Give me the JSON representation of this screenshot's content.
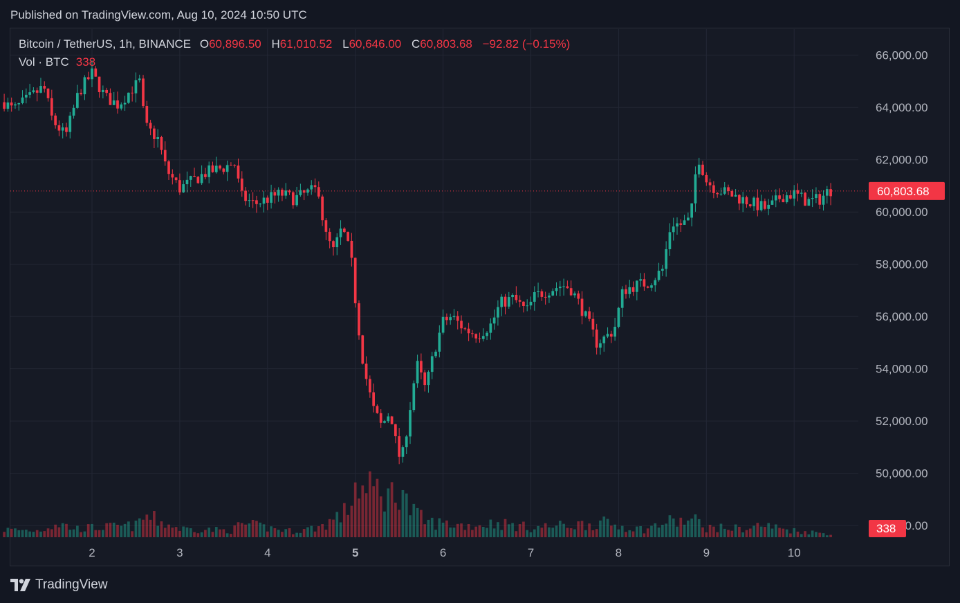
{
  "header": {
    "published": "Published on TradingView.com, Aug 10, 2024 10:50 UTC"
  },
  "legend": {
    "symbol": "Bitcoin / TetherUS, 1h, BINANCE",
    "o_label": "O",
    "o_value": "60,896.50",
    "h_label": "H",
    "h_value": "61,010.52",
    "l_label": "L",
    "l_value": "60,646.00",
    "c_label": "C",
    "c_value": "60,803.68",
    "change": "−92.82 (−0.15%)"
  },
  "volume_legend": {
    "label": "Vol · BTC",
    "value": "338"
  },
  "brand": {
    "name": "TradingView",
    "logo_icon": "tradingview-logo-icon"
  },
  "colors": {
    "up": "#22ab94",
    "down": "#f23645",
    "background": "#161a25",
    "grid": "#232735"
  },
  "chart_data": {
    "type": "candlestick",
    "ylim": [
      47500,
      67000
    ],
    "y_ticks": [
      "66,000.00",
      "64,000.00",
      "62,000.00",
      "60,000.00",
      "58,000.00",
      "56,000.00",
      "54,000.00",
      "52,000.00",
      "50,000.00",
      "48,000.00"
    ],
    "y_tick_values": [
      66000,
      64000,
      62000,
      60000,
      58000,
      56000,
      54000,
      52000,
      50000,
      48000
    ],
    "x_ticks": [
      {
        "label": "2",
        "day": 2,
        "bold": false
      },
      {
        "label": "3",
        "day": 3,
        "bold": false
      },
      {
        "label": "4",
        "day": 4,
        "bold": false
      },
      {
        "label": "5",
        "day": 5,
        "bold": true
      },
      {
        "label": "6",
        "day": 6,
        "bold": false
      },
      {
        "label": "7",
        "day": 7,
        "bold": false
      },
      {
        "label": "8",
        "day": 8,
        "bold": false
      },
      {
        "label": "9",
        "day": 9,
        "bold": false
      },
      {
        "label": "10",
        "day": 10,
        "bold": false
      }
    ],
    "last_price": 60803.68,
    "last_price_label": "60,803.68",
    "last_volume_label": "338",
    "anchors": [
      {
        "day": 1.0,
        "price": 64200
      },
      {
        "day": 1.1,
        "price": 63900
      },
      {
        "day": 1.3,
        "price": 64400
      },
      {
        "day": 1.45,
        "price": 64800
      },
      {
        "day": 1.55,
        "price": 63500
      },
      {
        "day": 1.7,
        "price": 62900
      },
      {
        "day": 1.85,
        "price": 64600
      },
      {
        "day": 2.0,
        "price": 65300
      },
      {
        "day": 2.15,
        "price": 64400
      },
      {
        "day": 2.3,
        "price": 64100
      },
      {
        "day": 2.45,
        "price": 64700
      },
      {
        "day": 2.55,
        "price": 65000
      },
      {
        "day": 2.6,
        "price": 63300
      },
      {
        "day": 2.75,
        "price": 62800
      },
      {
        "day": 2.85,
        "price": 61600
      },
      {
        "day": 3.0,
        "price": 60900
      },
      {
        "day": 3.15,
        "price": 61200
      },
      {
        "day": 3.3,
        "price": 61500
      },
      {
        "day": 3.5,
        "price": 61700
      },
      {
        "day": 3.62,
        "price": 61900
      },
      {
        "day": 3.7,
        "price": 60600
      },
      {
        "day": 3.85,
        "price": 60300
      },
      {
        "day": 4.0,
        "price": 60500
      },
      {
        "day": 4.15,
        "price": 60700
      },
      {
        "day": 4.3,
        "price": 60500
      },
      {
        "day": 4.5,
        "price": 60800
      },
      {
        "day": 4.58,
        "price": 60900
      },
      {
        "day": 4.65,
        "price": 59200
      },
      {
        "day": 4.75,
        "price": 58500
      },
      {
        "day": 4.85,
        "price": 59400
      },
      {
        "day": 4.95,
        "price": 58300
      },
      {
        "day": 5.02,
        "price": 56000
      },
      {
        "day": 5.1,
        "price": 54000
      },
      {
        "day": 5.2,
        "price": 52500
      },
      {
        "day": 5.3,
        "price": 51800
      },
      {
        "day": 5.4,
        "price": 52400
      },
      {
        "day": 5.48,
        "price": 50800
      },
      {
        "day": 5.53,
        "price": 50500
      },
      {
        "day": 5.6,
        "price": 52000
      },
      {
        "day": 5.7,
        "price": 54200
      },
      {
        "day": 5.8,
        "price": 53200
      },
      {
        "day": 5.9,
        "price": 54700
      },
      {
        "day": 6.0,
        "price": 55800
      },
      {
        "day": 6.1,
        "price": 56000
      },
      {
        "day": 6.25,
        "price": 55500
      },
      {
        "day": 6.4,
        "price": 55300
      },
      {
        "day": 6.55,
        "price": 55700
      },
      {
        "day": 6.65,
        "price": 56500
      },
      {
        "day": 6.8,
        "price": 56700
      },
      {
        "day": 6.95,
        "price": 56200
      },
      {
        "day": 7.05,
        "price": 56800
      },
      {
        "day": 7.2,
        "price": 57000
      },
      {
        "day": 7.35,
        "price": 57200
      },
      {
        "day": 7.45,
        "price": 57100
      },
      {
        "day": 7.55,
        "price": 56500
      },
      {
        "day": 7.65,
        "price": 55800
      },
      {
        "day": 7.75,
        "price": 55000
      },
      {
        "day": 7.85,
        "price": 55200
      },
      {
        "day": 7.95,
        "price": 55500
      },
      {
        "day": 8.05,
        "price": 57000
      },
      {
        "day": 8.2,
        "price": 57200
      },
      {
        "day": 8.35,
        "price": 57300
      },
      {
        "day": 8.5,
        "price": 57800
      },
      {
        "day": 8.6,
        "price": 59600
      },
      {
        "day": 8.7,
        "price": 59500
      },
      {
        "day": 8.82,
        "price": 59700
      },
      {
        "day": 8.9,
        "price": 62200
      },
      {
        "day": 9.0,
        "price": 61200
      },
      {
        "day": 9.1,
        "price": 60900
      },
      {
        "day": 9.25,
        "price": 60700
      },
      {
        "day": 9.4,
        "price": 60500
      },
      {
        "day": 9.55,
        "price": 60300
      },
      {
        "day": 9.7,
        "price": 60100
      },
      {
        "day": 9.85,
        "price": 60600
      },
      {
        "day": 10.0,
        "price": 60700
      },
      {
        "day": 10.15,
        "price": 60400
      },
      {
        "day": 10.3,
        "price": 60500
      },
      {
        "day": 10.4,
        "price": 60850
      },
      {
        "day": 10.45,
        "price": 60804
      }
    ],
    "volume_ylim": [
      0,
      12000
    ],
    "volume_anchors": [
      {
        "day": 1.0,
        "vol": 800
      },
      {
        "day": 1.4,
        "vol": 700
      },
      {
        "day": 1.6,
        "vol": 1500
      },
      {
        "day": 1.8,
        "vol": 900
      },
      {
        "day": 2.5,
        "vol": 1200
      },
      {
        "day": 2.6,
        "vol": 2200
      },
      {
        "day": 3.0,
        "vol": 900
      },
      {
        "day": 3.6,
        "vol": 700
      },
      {
        "day": 3.7,
        "vol": 1400
      },
      {
        "day": 4.3,
        "vol": 600
      },
      {
        "day": 4.6,
        "vol": 1100
      },
      {
        "day": 4.9,
        "vol": 2600
      },
      {
        "day": 5.02,
        "vol": 6000
      },
      {
        "day": 5.1,
        "vol": 4500
      },
      {
        "day": 5.25,
        "vol": 5000
      },
      {
        "day": 5.45,
        "vol": 4200
      },
      {
        "day": 5.52,
        "vol": 6200
      },
      {
        "day": 5.6,
        "vol": 3000
      },
      {
        "day": 5.8,
        "vol": 1600
      },
      {
        "day": 6.3,
        "vol": 1200
      },
      {
        "day": 6.6,
        "vol": 1500
      },
      {
        "day": 7.0,
        "vol": 1000
      },
      {
        "day": 7.5,
        "vol": 1300
      },
      {
        "day": 7.8,
        "vol": 1500
      },
      {
        "day": 8.0,
        "vol": 1200
      },
      {
        "day": 8.3,
        "vol": 800
      },
      {
        "day": 8.55,
        "vol": 1600
      },
      {
        "day": 8.9,
        "vol": 1700
      },
      {
        "day": 9.0,
        "vol": 1000
      },
      {
        "day": 9.5,
        "vol": 900
      },
      {
        "day": 9.6,
        "vol": 1300
      },
      {
        "day": 10.0,
        "vol": 700
      },
      {
        "day": 10.45,
        "vol": 330
      }
    ]
  }
}
